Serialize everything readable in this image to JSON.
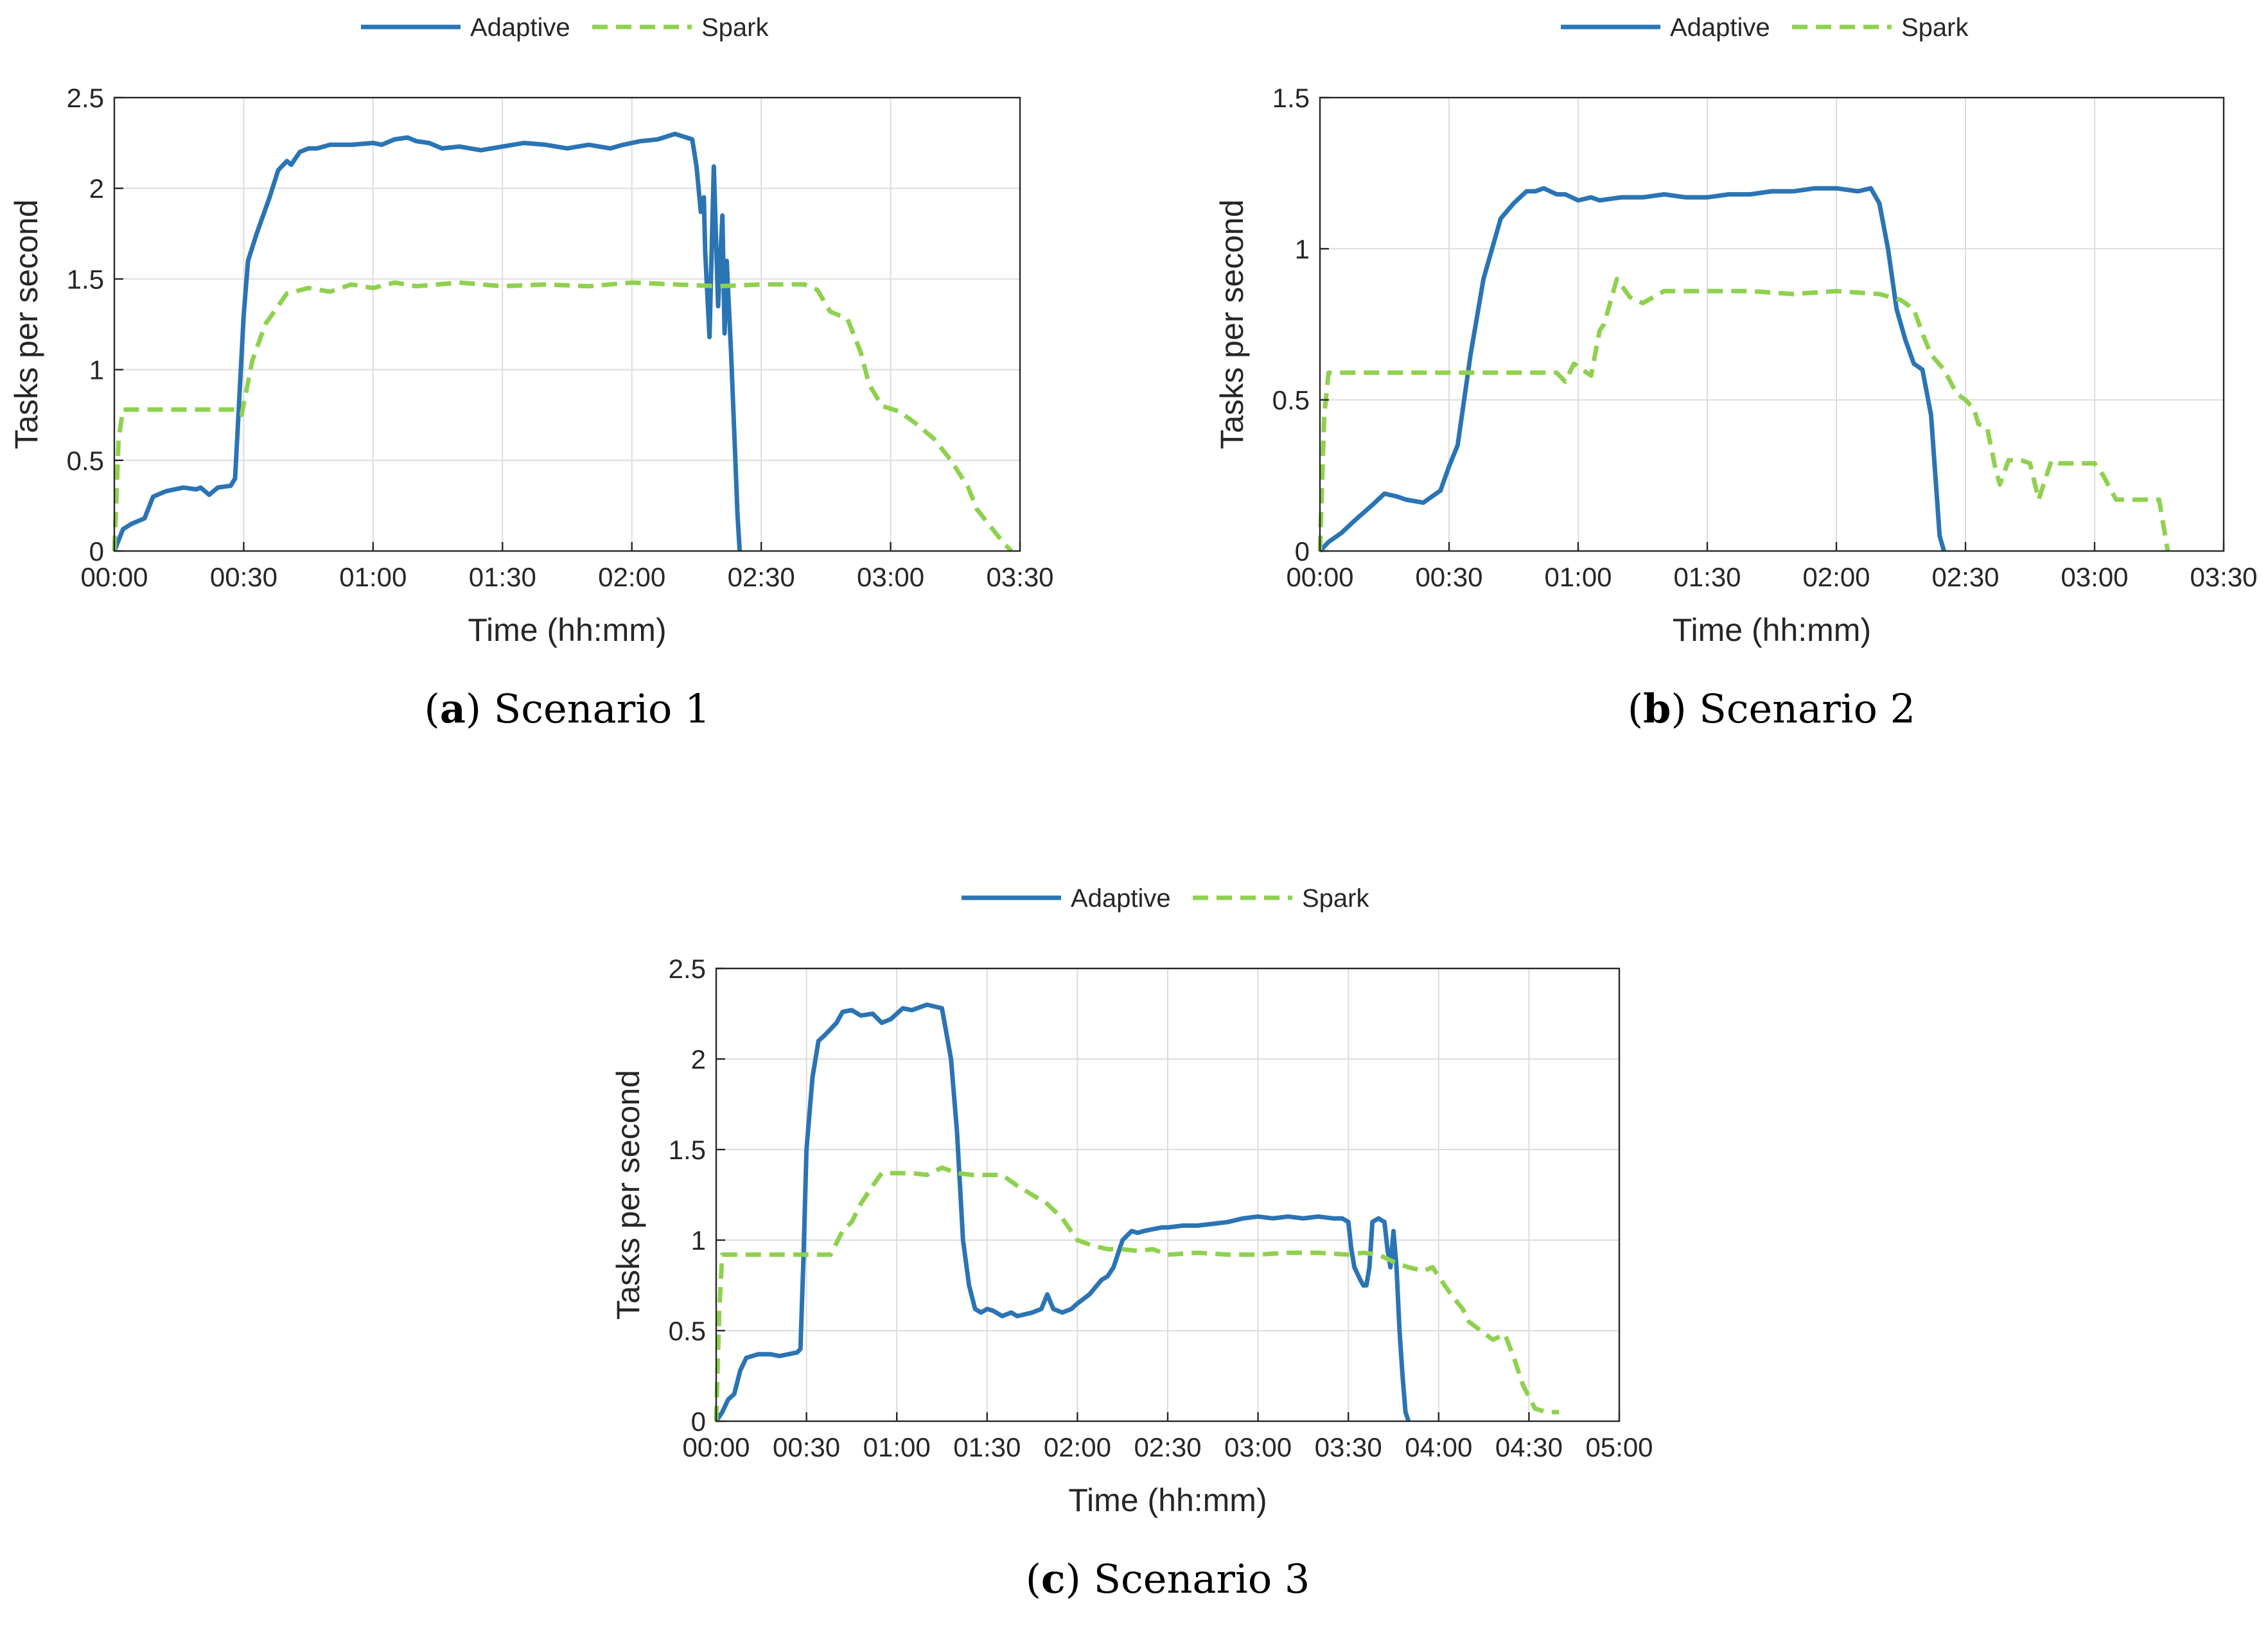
{
  "colors": {
    "adaptive": "#2a74b4",
    "spark": "#8fd14f",
    "grid": "#dcdcdc",
    "axis": "#262626"
  },
  "chart_data": [
    {
      "type": "line",
      "panel_letter": "a",
      "caption": "Scenario 1",
      "xlabel": "Time (hh:mm)",
      "ylabel": "Tasks per second",
      "x_unit": "minutes",
      "xlim": [
        0,
        210
      ],
      "ylim": [
        0,
        2.5
      ],
      "xticks": [
        0,
        30,
        60,
        90,
        120,
        150,
        180,
        210
      ],
      "xtick_labels": [
        "00:00",
        "00:30",
        "01:00",
        "01:30",
        "02:00",
        "02:30",
        "03:00",
        "03:30"
      ],
      "yticks": [
        0,
        0.5,
        1,
        1.5,
        2,
        2.5
      ],
      "ytick_labels": [
        "0",
        "0.5",
        "1",
        "1.5",
        "2",
        "2.5"
      ],
      "grid": true,
      "legend": [
        "Adaptive",
        "Spark"
      ],
      "series": [
        {
          "name": "Adaptive",
          "style": "solid",
          "x": [
            0,
            2,
            4,
            7,
            9,
            12,
            16,
            19,
            20,
            22,
            24,
            27,
            28,
            29,
            30,
            31,
            33,
            36,
            38,
            40,
            41,
            43,
            45,
            47,
            50,
            55,
            60,
            62,
            65,
            68,
            70,
            73,
            76,
            80,
            85,
            90,
            95,
            100,
            105,
            110,
            115,
            118,
            122,
            126,
            130,
            134,
            135,
            136,
            136.7,
            137,
            138,
            139,
            140,
            141,
            141.5,
            142,
            143,
            144,
            144.5,
            145
          ],
          "y": [
            0,
            0.12,
            0.15,
            0.18,
            0.3,
            0.33,
            0.35,
            0.34,
            0.35,
            0.31,
            0.35,
            0.36,
            0.4,
            0.85,
            1.3,
            1.6,
            1.75,
            1.95,
            2.1,
            2.15,
            2.13,
            2.2,
            2.22,
            2.22,
            2.24,
            2.24,
            2.25,
            2.24,
            2.27,
            2.28,
            2.26,
            2.25,
            2.22,
            2.23,
            2.21,
            2.23,
            2.25,
            2.24,
            2.22,
            2.24,
            2.22,
            2.24,
            2.26,
            2.27,
            2.3,
            2.27,
            2.12,
            1.87,
            1.95,
            1.65,
            1.18,
            2.12,
            1.35,
            1.85,
            1.2,
            1.6,
            1.1,
            0.5,
            0.2,
            0
          ]
        },
        {
          "name": "Spark",
          "style": "dashed",
          "x": [
            0,
            1,
            2,
            28,
            29.5,
            32,
            35,
            40,
            45,
            50,
            55,
            60,
            65,
            70,
            80,
            90,
            100,
            110,
            120,
            130,
            140,
            150,
            155,
            160,
            163,
            166,
            170,
            173,
            175,
            178,
            182,
            186,
            190,
            194,
            198,
            200,
            203,
            206,
            208
          ],
          "y": [
            0,
            0.62,
            0.78,
            0.78,
            0.75,
            1.05,
            1.25,
            1.42,
            1.45,
            1.43,
            1.47,
            1.45,
            1.48,
            1.46,
            1.48,
            1.46,
            1.47,
            1.46,
            1.48,
            1.47,
            1.46,
            1.47,
            1.47,
            1.47,
            1.44,
            1.32,
            1.28,
            1.1,
            0.92,
            0.8,
            0.77,
            0.7,
            0.62,
            0.5,
            0.35,
            0.23,
            0.14,
            0.05,
            0
          ]
        }
      ]
    },
    {
      "type": "line",
      "panel_letter": "b",
      "caption": "Scenario 2",
      "xlabel": "Time (hh:mm)",
      "ylabel": "Tasks per second",
      "x_unit": "minutes",
      "xlim": [
        0,
        210
      ],
      "ylim": [
        0,
        1.5
      ],
      "xticks": [
        0,
        30,
        60,
        90,
        120,
        150,
        180,
        210
      ],
      "xtick_labels": [
        "00:00",
        "00:30",
        "01:00",
        "01:30",
        "02:00",
        "02:30",
        "03:00",
        "03:30"
      ],
      "yticks": [
        0,
        0.5,
        1,
        1.5
      ],
      "ytick_labels": [
        "0",
        "0.5",
        "1",
        "1.5"
      ],
      "grid": true,
      "legend": [
        "Adaptive",
        "Spark"
      ],
      "series": [
        {
          "name": "Adaptive",
          "style": "solid",
          "x": [
            0,
            2,
            5,
            8,
            12,
            15,
            18,
            20,
            24,
            28,
            30,
            32,
            35,
            38,
            40,
            42,
            45,
            48,
            50,
            52,
            55,
            57,
            60,
            63,
            65,
            70,
            75,
            80,
            85,
            90,
            95,
            100,
            105,
            110,
            115,
            120,
            125,
            128,
            130,
            132,
            134,
            136,
            138,
            140,
            142,
            143,
            144,
            145
          ],
          "y": [
            0,
            0.03,
            0.06,
            0.1,
            0.15,
            0.19,
            0.18,
            0.17,
            0.16,
            0.2,
            0.28,
            0.35,
            0.65,
            0.9,
            1.0,
            1.1,
            1.15,
            1.19,
            1.19,
            1.2,
            1.18,
            1.18,
            1.16,
            1.17,
            1.16,
            1.17,
            1.17,
            1.18,
            1.17,
            1.17,
            1.18,
            1.18,
            1.19,
            1.19,
            1.2,
            1.2,
            1.19,
            1.2,
            1.15,
            1.0,
            0.8,
            0.7,
            0.62,
            0.6,
            0.45,
            0.25,
            0.05,
            0
          ]
        },
        {
          "name": "Spark",
          "style": "dashed",
          "x": [
            0,
            1,
            2,
            55,
            57,
            59,
            61,
            63,
            65,
            66,
            67,
            69,
            72,
            75,
            80,
            85,
            90,
            100,
            110,
            120,
            130,
            135,
            138,
            140,
            142,
            145,
            148,
            150,
            152,
            153,
            155,
            157,
            158,
            160,
            163,
            165,
            167,
            170,
            172,
            174,
            177,
            180,
            182,
            185,
            190,
            195,
            197
          ],
          "y": [
            0,
            0.45,
            0.59,
            0.59,
            0.56,
            0.62,
            0.6,
            0.58,
            0.73,
            0.75,
            0.8,
            0.9,
            0.84,
            0.82,
            0.86,
            0.86,
            0.86,
            0.86,
            0.85,
            0.86,
            0.85,
            0.83,
            0.8,
            0.72,
            0.65,
            0.6,
            0.52,
            0.5,
            0.47,
            0.42,
            0.41,
            0.27,
            0.22,
            0.3,
            0.3,
            0.29,
            0.17,
            0.3,
            0.29,
            0.29,
            0.29,
            0.29,
            0.25,
            0.17,
            0.17,
            0.17,
            0
          ]
        }
      ]
    },
    {
      "type": "line",
      "panel_letter": "c",
      "caption": "Scenario 3",
      "xlabel": "Time (hh:mm)",
      "ylabel": "Tasks per second",
      "x_unit": "minutes",
      "xlim": [
        0,
        300
      ],
      "ylim": [
        0,
        2.5
      ],
      "xticks": [
        0,
        30,
        60,
        90,
        120,
        150,
        180,
        210,
        240,
        270,
        300
      ],
      "xtick_labels": [
        "00:00",
        "00:30",
        "01:00",
        "01:30",
        "02:00",
        "02:30",
        "03:00",
        "03:30",
        "04:00",
        "04:30",
        "05:00"
      ],
      "yticks": [
        0,
        0.5,
        1,
        1.5,
        2,
        2.5
      ],
      "ytick_labels": [
        "0",
        "0.5",
        "1",
        "1.5",
        "2",
        "2.5"
      ],
      "grid": true,
      "legend": [
        "Adaptive",
        "Spark"
      ],
      "series": [
        {
          "name": "Adaptive",
          "style": "solid",
          "x": [
            0,
            2,
            4,
            6,
            8,
            10,
            14,
            18,
            21,
            24,
            27,
            28,
            29,
            30,
            32,
            34,
            36,
            40,
            42,
            45,
            48,
            52,
            55,
            58,
            60,
            62,
            65,
            70,
            75,
            78,
            80,
            82,
            84,
            86,
            88,
            90,
            92,
            95,
            98,
            100,
            105,
            108,
            110,
            112,
            115,
            118,
            120,
            124,
            128,
            130,
            132,
            135,
            138,
            140,
            142,
            145,
            148,
            150,
            155,
            160,
            165,
            170,
            175,
            180,
            185,
            190,
            195,
            200,
            205,
            208,
            210,
            211,
            212,
            214,
            215,
            216,
            217,
            218,
            220,
            222,
            223,
            224,
            225,
            226,
            227,
            228,
            229,
            230
          ],
          "y": [
            0,
            0.05,
            0.12,
            0.15,
            0.28,
            0.35,
            0.37,
            0.37,
            0.36,
            0.37,
            0.38,
            0.4,
            0.9,
            1.5,
            1.9,
            2.1,
            2.13,
            2.2,
            2.26,
            2.27,
            2.24,
            2.25,
            2.2,
            2.22,
            2.25,
            2.28,
            2.27,
            2.3,
            2.28,
            2.0,
            1.6,
            1.0,
            0.75,
            0.62,
            0.6,
            0.62,
            0.61,
            0.58,
            0.6,
            0.58,
            0.6,
            0.62,
            0.7,
            0.62,
            0.6,
            0.62,
            0.65,
            0.7,
            0.78,
            0.8,
            0.85,
            1.0,
            1.05,
            1.04,
            1.05,
            1.06,
            1.07,
            1.07,
            1.08,
            1.08,
            1.09,
            1.1,
            1.12,
            1.13,
            1.12,
            1.13,
            1.12,
            1.13,
            1.12,
            1.12,
            1.1,
            0.95,
            0.85,
            0.78,
            0.75,
            0.75,
            0.85,
            1.1,
            1.12,
            1.1,
            0.95,
            0.85,
            1.05,
            0.85,
            0.5,
            0.25,
            0.05,
            0
          ]
        },
        {
          "name": "Spark",
          "style": "dashed",
          "x": [
            0,
            1,
            2,
            25,
            38,
            42,
            45,
            48,
            52,
            55,
            60,
            65,
            70,
            75,
            80,
            85,
            90,
            95,
            100,
            105,
            110,
            115,
            120,
            125,
            130,
            135,
            140,
            145,
            150,
            160,
            170,
            180,
            190,
            200,
            210,
            215,
            220,
            225,
            230,
            235,
            238,
            242,
            245,
            248,
            250,
            254,
            258,
            262,
            265,
            268,
            272,
            276,
            280
          ],
          "y": [
            0,
            0.6,
            0.92,
            0.92,
            0.92,
            1.05,
            1.1,
            1.2,
            1.3,
            1.37,
            1.37,
            1.37,
            1.36,
            1.4,
            1.37,
            1.36,
            1.36,
            1.36,
            1.3,
            1.25,
            1.2,
            1.12,
            1.0,
            0.97,
            0.95,
            0.95,
            0.94,
            0.95,
            0.92,
            0.93,
            0.92,
            0.92,
            0.93,
            0.93,
            0.92,
            0.93,
            0.92,
            0.88,
            0.85,
            0.83,
            0.85,
            0.75,
            0.68,
            0.62,
            0.55,
            0.5,
            0.45,
            0.48,
            0.35,
            0.2,
            0.07,
            0.05,
            0.05
          ]
        }
      ]
    }
  ]
}
